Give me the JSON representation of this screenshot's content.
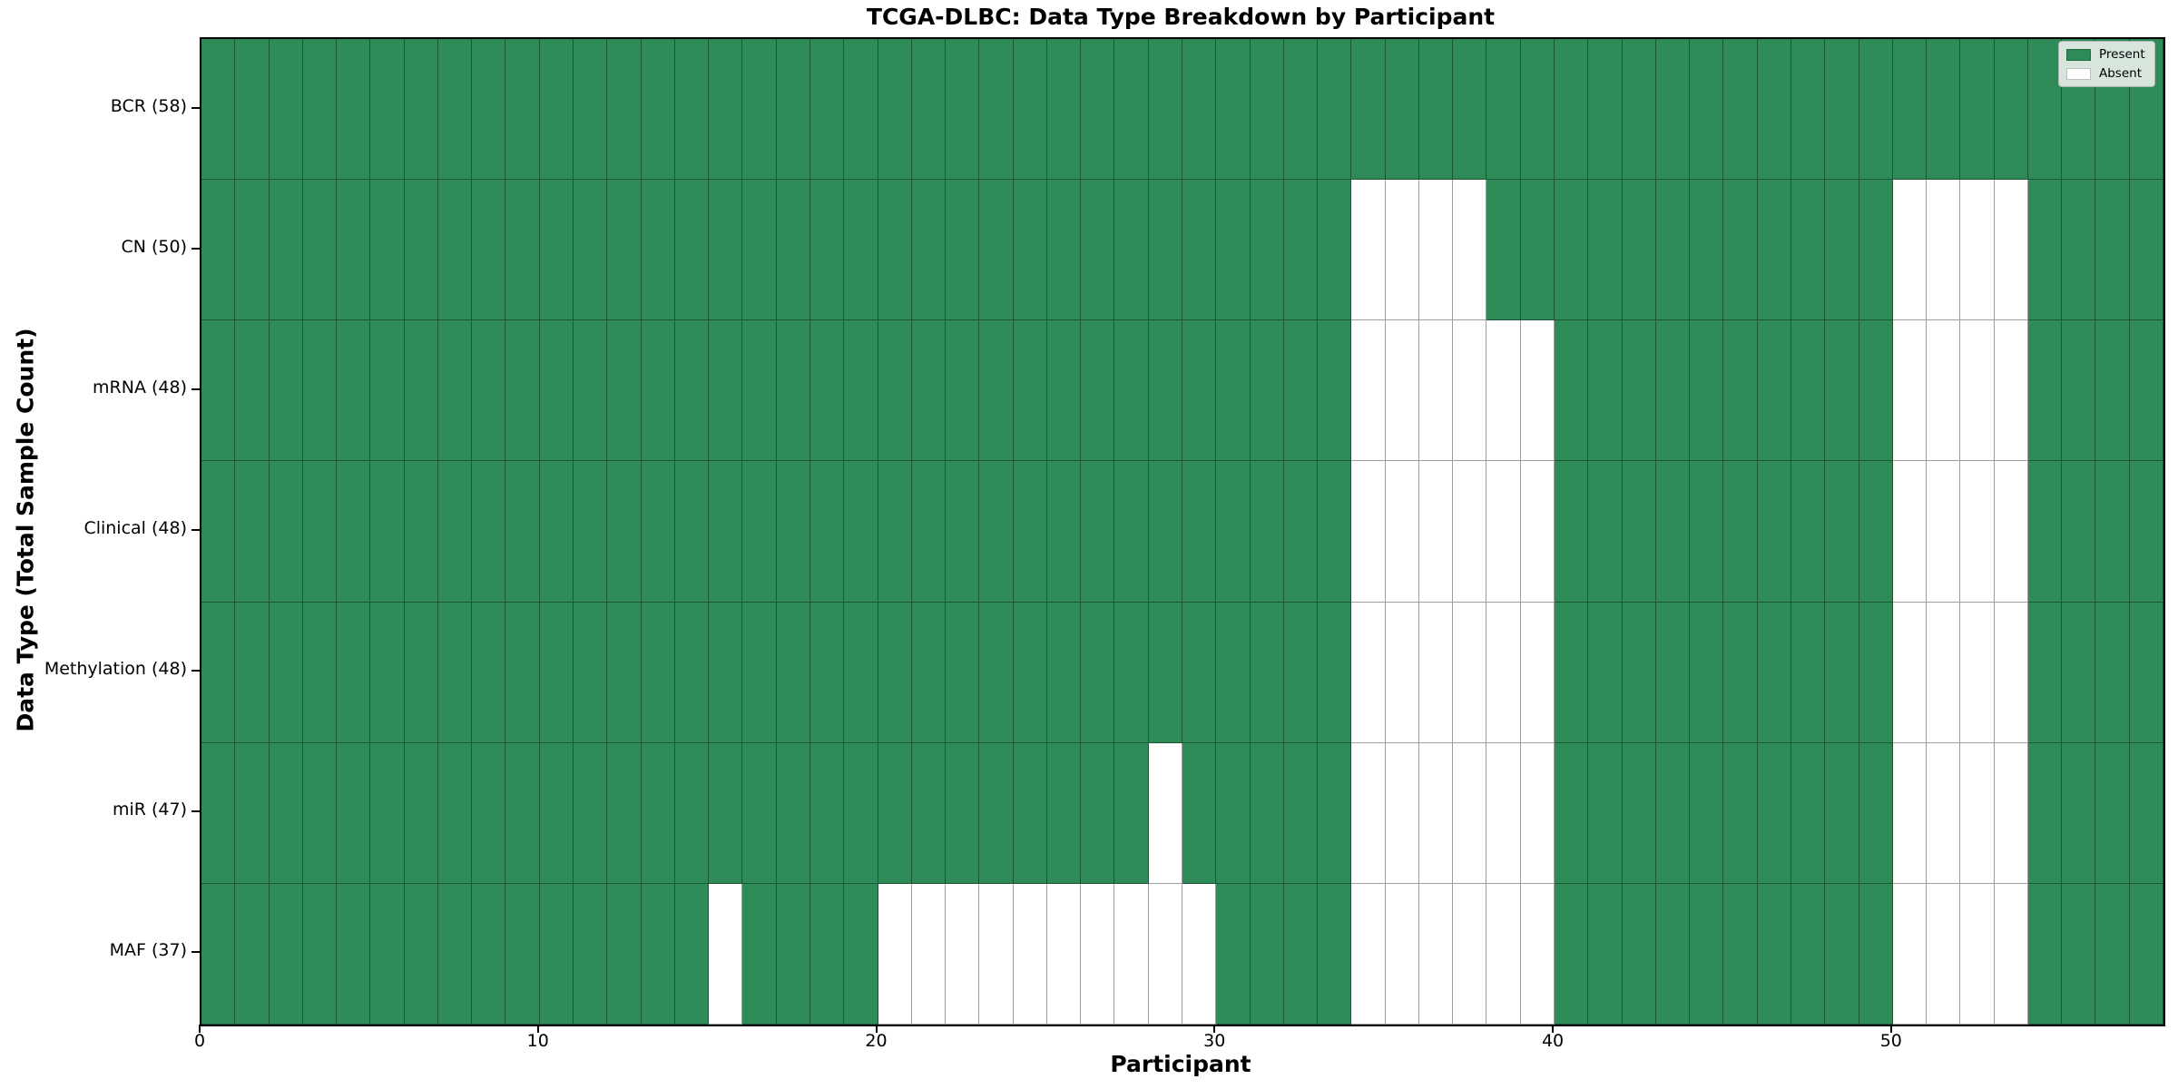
{
  "chart_data": {
    "type": "heatmap",
    "title": "TCGA-DLBC: Data Type Breakdown by Participant",
    "xlabel": "Participant",
    "ylabel": "Data Type (Total Sample Count)",
    "x_ticks": [
      0,
      10,
      20,
      30,
      40,
      50
    ],
    "x_tick_labels": [
      "0",
      "10",
      "20",
      "30",
      "40",
      "50"
    ],
    "xlim": [
      0,
      58
    ],
    "n_participants": 58,
    "grid": "cell borders only, no background gridlines",
    "colors": {
      "present": "#2e8b57",
      "absent": "#ffffff",
      "cell_edge": "rgba(0,0,0,0.38)",
      "axis": "#000000"
    },
    "legend": {
      "position": "upper right",
      "entries": [
        {
          "label": "Present",
          "color": "#2e8b57"
        },
        {
          "label": "Absent",
          "color": "#ffffff"
        }
      ]
    },
    "rows": [
      {
        "label": "BCR (58)",
        "data_type": "BCR",
        "total_samples": 58,
        "absent_participants": []
      },
      {
        "label": "CN (50)",
        "data_type": "CN",
        "total_samples": 50,
        "absent_participants": [
          [
            34,
            37
          ],
          [
            50,
            53
          ]
        ]
      },
      {
        "label": "mRNA (48)",
        "data_type": "mRNA",
        "total_samples": 48,
        "absent_participants": [
          [
            34,
            39
          ],
          [
            50,
            53
          ]
        ]
      },
      {
        "label": "Clinical (48)",
        "data_type": "Clinical",
        "total_samples": 48,
        "absent_participants": [
          [
            34,
            39
          ],
          [
            50,
            53
          ]
        ]
      },
      {
        "label": "Methylation (48)",
        "data_type": "Methylation",
        "total_samples": 48,
        "absent_participants": [
          [
            34,
            39
          ],
          [
            50,
            53
          ]
        ]
      },
      {
        "label": "miR (47)",
        "data_type": "miR",
        "total_samples": 47,
        "absent_participants": [
          [
            28,
            28
          ],
          [
            34,
            39
          ],
          [
            50,
            53
          ]
        ]
      },
      {
        "label": "MAF (37)",
        "data_type": "MAF",
        "total_samples": 37,
        "absent_participants": [
          [
            15,
            15
          ],
          [
            20,
            29
          ],
          [
            34,
            39
          ],
          [
            50,
            53
          ]
        ]
      }
    ]
  }
}
